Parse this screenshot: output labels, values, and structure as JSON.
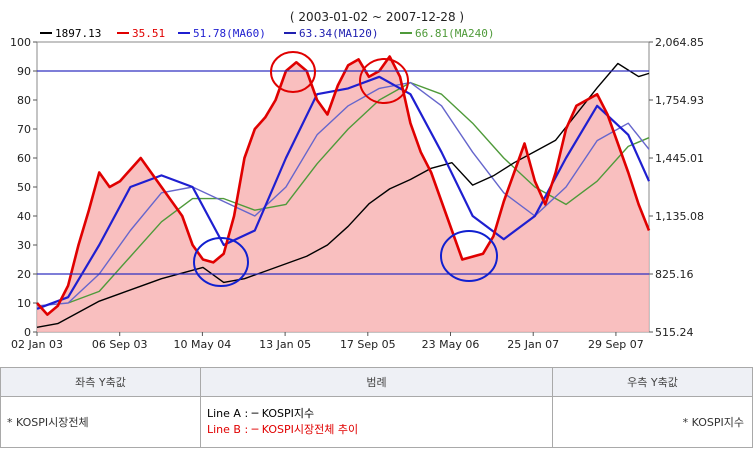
{
  "chart_data": {
    "type": "line",
    "title": "( 2003-01-02 ~ 2007-12-28 )",
    "legend": [
      {
        "value": "1897.13",
        "color": "#000000"
      },
      {
        "value": "35.51",
        "color": "#e00000"
      },
      {
        "value": "51.78(MA60)",
        "color": "#1f1fd0"
      },
      {
        "value": "63.34(MA120)",
        "color": "#2020b0"
      },
      {
        "value": "66.81(MA240)",
        "color": "#4f9a3a"
      }
    ],
    "x_ticks": [
      "02 Jan 03",
      "06 Sep 03",
      "10 May 04",
      "13 Jan 05",
      "17 Sep 05",
      "23 May 06",
      "25 Jan 07",
      "29 Sep 07"
    ],
    "left_axis": {
      "ticks": [
        0,
        10,
        20,
        30,
        40,
        50,
        60,
        70,
        80,
        90,
        100
      ],
      "range": [
        0,
        100
      ]
    },
    "right_axis": {
      "ticks": [
        "515.24",
        "825.16",
        "1,135.08",
        "1,445.01",
        "1,754.93",
        "2,064.85"
      ],
      "range": [
        515.24,
        2064.85
      ]
    },
    "reference_lines": [
      90,
      20
    ],
    "series": [
      {
        "color": "#e00000",
        "axis": "left",
        "x": [
          0,
          1,
          2,
          3,
          4,
          5,
          6,
          7,
          8,
          9,
          10,
          11,
          12,
          13,
          14,
          15,
          16,
          17,
          18,
          19,
          20,
          21,
          22,
          23,
          24,
          25,
          26,
          27,
          28,
          29,
          30,
          31,
          32,
          33,
          34,
          35,
          36,
          37,
          38,
          39,
          40,
          41,
          42,
          43,
          44,
          45,
          46,
          47,
          48,
          49,
          50,
          51,
          52,
          53,
          54,
          55,
          56,
          57,
          58,
          59
        ],
        "values": [
          10,
          6,
          9,
          16,
          30,
          42,
          55,
          50,
          52,
          56,
          60,
          55,
          50,
          45,
          40,
          30,
          25,
          24,
          27,
          40,
          60,
          70,
          74,
          80,
          90,
          93,
          90,
          80,
          75,
          85,
          92,
          94,
          88,
          90,
          95,
          88,
          72,
          62,
          55,
          45,
          35,
          25,
          26,
          27,
          33,
          45,
          55,
          65,
          52,
          44,
          55,
          70,
          78,
          80,
          82,
          75,
          65,
          55,
          44,
          35
        ]
      },
      {
        "color": "#1f1fd0",
        "axis": "left",
        "x": [
          0,
          3,
          6,
          9,
          12,
          15,
          18,
          21,
          24,
          27,
          30,
          33,
          36,
          39,
          42,
          45,
          48,
          51,
          54,
          57,
          59
        ],
        "values": [
          8,
          12,
          30,
          50,
          54,
          50,
          30,
          35,
          60,
          82,
          84,
          88,
          82,
          62,
          40,
          32,
          40,
          60,
          78,
          68,
          52
        ]
      },
      {
        "color": "#6666cc",
        "axis": "left",
        "x": [
          0,
          3,
          6,
          9,
          12,
          15,
          18,
          21,
          24,
          27,
          30,
          33,
          36,
          39,
          42,
          45,
          48,
          51,
          54,
          57,
          59
        ],
        "values": [
          9,
          10,
          20,
          35,
          48,
          50,
          45,
          40,
          50,
          68,
          78,
          84,
          86,
          78,
          62,
          48,
          40,
          50,
          66,
          72,
          63
        ]
      },
      {
        "color": "#4f9a3a",
        "axis": "left",
        "x": [
          3,
          6,
          9,
          12,
          15,
          18,
          21,
          24,
          27,
          30,
          33,
          36,
          39,
          42,
          45,
          48,
          51,
          54,
          57,
          59
        ],
        "values": [
          10,
          14,
          26,
          38,
          46,
          46,
          42,
          44,
          58,
          70,
          80,
          86,
          82,
          72,
          60,
          50,
          44,
          52,
          64,
          67
        ]
      },
      {
        "color": "#000000",
        "axis": "right",
        "x": [
          0,
          2,
          4,
          6,
          8,
          10,
          12,
          14,
          16,
          18,
          20,
          22,
          24,
          26,
          28,
          30,
          32,
          34,
          36,
          38,
          40,
          42,
          44,
          46,
          48,
          50,
          52,
          54,
          56,
          58,
          59
        ],
        "values": [
          540,
          560,
          620,
          680,
          720,
          760,
          800,
          830,
          860,
          780,
          800,
          840,
          880,
          920,
          980,
          1080,
          1200,
          1280,
          1330,
          1390,
          1420,
          1300,
          1350,
          1420,
          1480,
          1540,
          1680,
          1820,
          1950,
          1880,
          1897.13
        ]
      }
    ]
  },
  "table": {
    "left_header": "좌측 Y축값",
    "mid_header": "범례",
    "right_header": "우측 Y축값",
    "left_value": "* KOSPI시장전체",
    "line_a": "Line A : ─ KOSPI지수",
    "line_b": "Line B : ─ KOSPI시장전체 추이",
    "right_value": "* KOSPI지수"
  }
}
